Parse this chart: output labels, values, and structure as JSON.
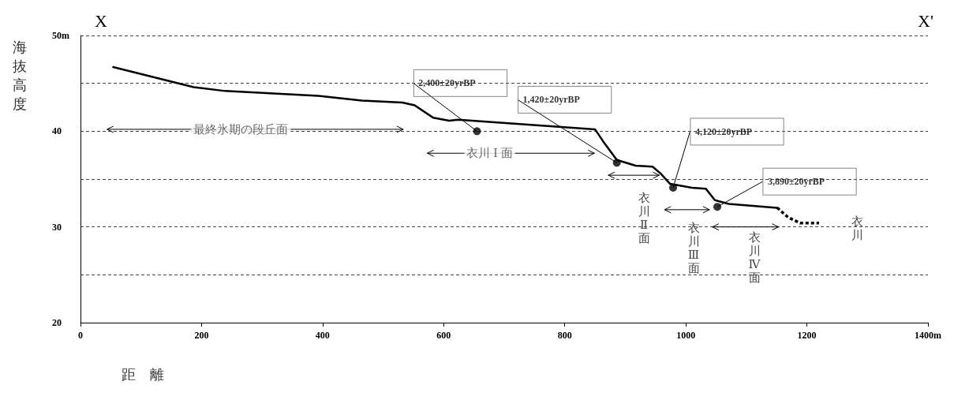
{
  "chart_data": {
    "type": "line",
    "xlabel": "距　離",
    "ylabel": "海抜高度",
    "xlim": [
      0,
      1400
    ],
    "ylim": [
      20,
      50
    ],
    "xticks": [
      0,
      200,
      400,
      600,
      800,
      1000,
      1200,
      {
        "value": 1400,
        "label": "1400m"
      }
    ],
    "yticks": [
      20,
      {
        "value": 25,
        "label": null
      },
      30,
      {
        "value": 35,
        "label": null
      },
      40,
      {
        "value": 45,
        "label": null
      },
      {
        "value": 50,
        "label": "50m"
      }
    ],
    "grid": "y",
    "series": [
      {
        "type": "line",
        "color": "#000000",
        "line_style": "solid",
        "marker": "none",
        "x": [
          54,
          187,
          239,
          393,
          465,
          532,
          552,
          583,
          609,
          624,
          850,
          866,
          886,
          917,
          945,
          958,
          974,
          1010,
          1033,
          1048,
          1071,
          1151
        ],
        "values": [
          46.7,
          44.6,
          44.2,
          43.7,
          43.2,
          43.0,
          42.7,
          41.4,
          41.1,
          41.2,
          40.2,
          38.7,
          37.0,
          36.4,
          36.3,
          35.6,
          34.5,
          34.1,
          34.0,
          32.8,
          32.4,
          32.0
        ]
      },
      {
        "type": "line",
        "color": "#000000",
        "line_style": "dashed",
        "marker": "none",
        "x": [
          1151,
          1169,
          1189,
          1220
        ],
        "values": [
          32.0,
          31.0,
          30.4,
          30.4
        ]
      },
      {
        "type": "scatter",
        "color": "#000000",
        "marker": "circle",
        "x": [
          655,
          886,
          979,
          1052
        ],
        "values": [
          40,
          36.7,
          34.1,
          32.1
        ]
      },
      {
        "type": "line",
        "color": "#000000",
        "line_style": "solid",
        "marker": "cross",
        "x": [
          44,
          533
        ],
        "values": [
          40.2,
          40.2
        ]
      },
      {
        "type": "line",
        "color": "#000000",
        "line_style": "solid",
        "marker": "cross",
        "x": [
          573,
          849
        ],
        "values": [
          37.7,
          37.7
        ]
      },
      {
        "type": "line",
        "color": "#000000",
        "line_style": "solid",
        "marker": "cross",
        "x": [
          872,
          956
        ],
        "values": [
          35.4,
          35.4
        ]
      },
      {
        "type": "line",
        "color": "#000000",
        "line_style": "solid",
        "marker": "cross",
        "x": [
          965,
          1039
        ],
        "values": [
          31.8,
          31.8
        ]
      },
      {
        "type": "line",
        "color": "#000000",
        "line_style": "solid",
        "marker": "cross",
        "x": [
          1044,
          1153
        ],
        "values": [
          30.0,
          30.0
        ]
      }
    ],
    "annotations": [
      "X",
      "X'",
      {
        "text": "2,400±20yrBP",
        "x": 655,
        "y": 40
      },
      {
        "text": "1,420±20yrBP",
        "x": 886,
        "y": 36.7
      },
      {
        "text": "4,120±20yrBP",
        "x": 979,
        "y": 34.1
      },
      {
        "text": "3,890±20yrBP",
        "x": 1052,
        "y": 32.1
      },
      {
        "text": "最終氷期の段丘面",
        "x": 265,
        "y": 40.2
      },
      {
        "text": "衣川 Ⅰ 面",
        "x": 676,
        "y": 37.7
      },
      "衣川Ⅱ面",
      "衣川Ⅲ面",
      "衣川Ⅳ面",
      "衣川"
    ]
  }
}
